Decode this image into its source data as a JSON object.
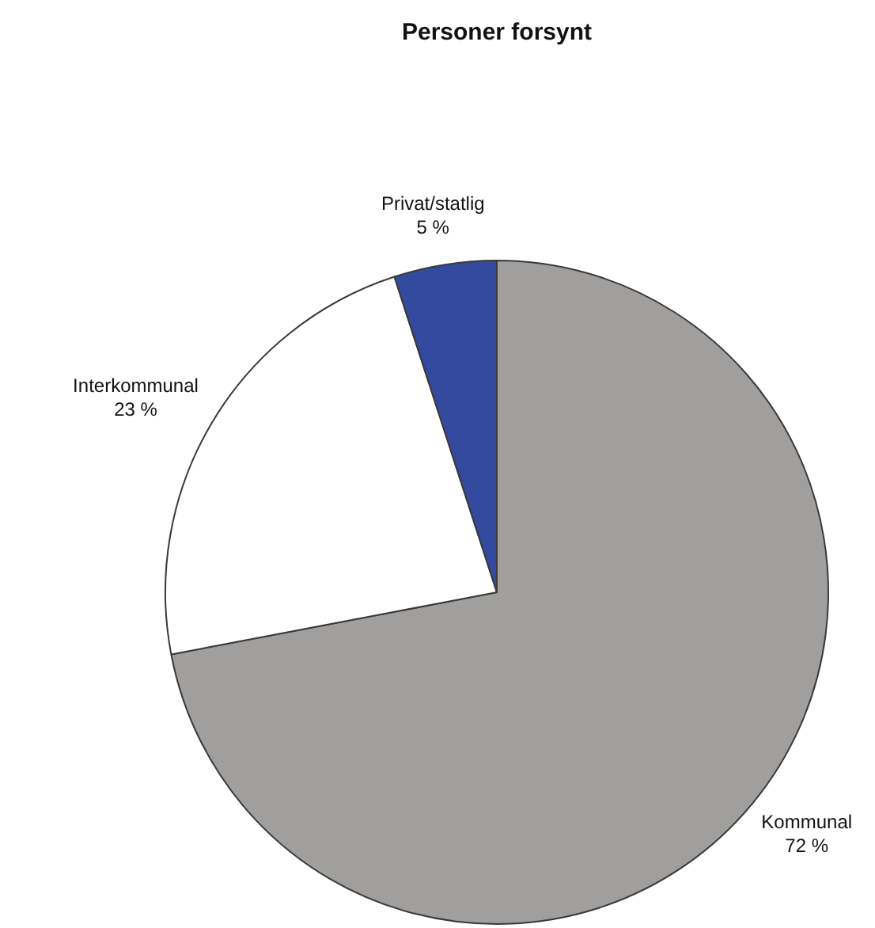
{
  "chart_data": {
    "type": "pie",
    "title": "Personer forsynt",
    "categories": [
      "Kommunal",
      "Interkommunal",
      "Privat/statlig"
    ],
    "values": [
      72,
      23,
      5
    ],
    "colors": [
      "#a09f9d",
      "#ffffff",
      "#334a9e"
    ],
    "value_labels": [
      "72 %",
      "23 %",
      "5 %"
    ]
  }
}
